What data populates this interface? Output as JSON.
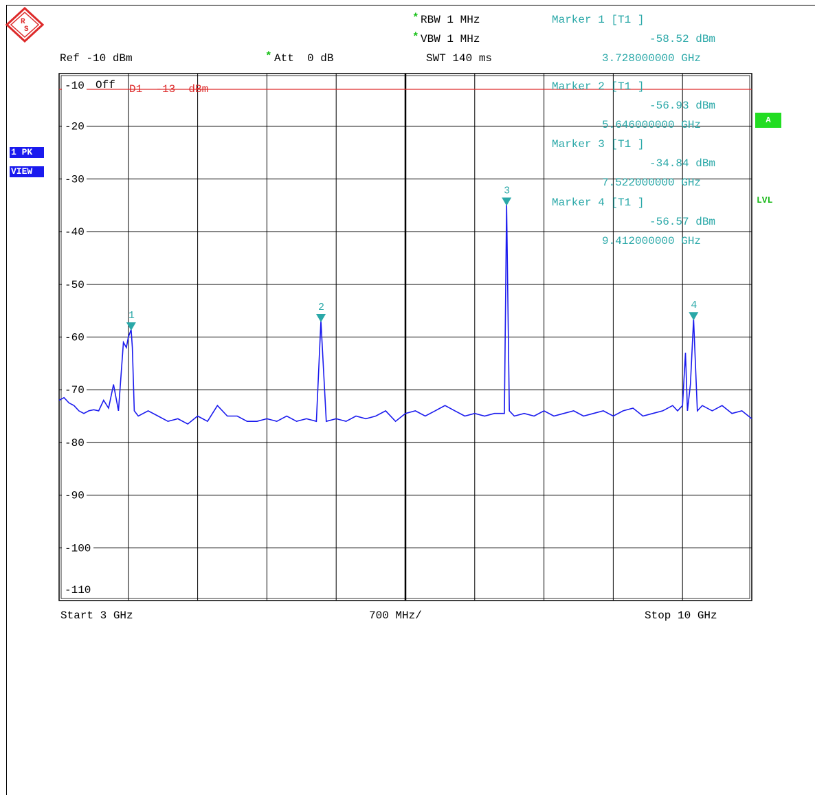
{
  "header": {
    "rbw": "RBW 1 MHz",
    "vbw": "VBW 1 MHz",
    "swt": "SWT 140 ms",
    "ref": "Ref -10 dBm",
    "att": "Att  0 dB",
    "star": "*",
    "marker1": {
      "title": "Marker 1 [T1 ]",
      "level": "-58.52 dBm",
      "freq": "3.728000000 GHz"
    }
  },
  "overlay": {
    "marker2": {
      "title": "Marker 2 [T1 ]",
      "level": "-56.93 dBm",
      "freq": "5.646000000 GHz"
    },
    "marker3": {
      "title": "Marker 3 [T1 ]",
      "level": "-34.84 dBm",
      "freq": "7.522000000 GHz"
    },
    "marker4": {
      "title": "Marker 4 [T1 ]",
      "level": "-56.57 dBm",
      "freq": "9.412000000 GHz"
    },
    "offset_label": "Off",
    "display_line": "D1  -13  dBm"
  },
  "side": {
    "trace_badge_1": "1 PK",
    "trace_badge_2": "VIEW",
    "a_badge": "A",
    "lvl": "LVL"
  },
  "footer": {
    "start": "Start 3 GHz",
    "span": "700 MHz/",
    "stop": "Stop 10 GHz"
  },
  "colors": {
    "trace": "#1a1aee",
    "marker": "#2aa8a8",
    "display_line": "#dd2a2a",
    "logo": "#dd2a2a"
  },
  "chart_data": {
    "type": "line",
    "x_unit": "GHz",
    "y_unit": "dBm",
    "xlim": [
      3,
      10
    ],
    "ylim": [
      -110,
      -10
    ],
    "ytick_labels": [
      "-10",
      "-20",
      "-30",
      "-40",
      "-50",
      "-60",
      "-70",
      "-80",
      "-90",
      "-100",
      "-110"
    ],
    "display_line_dbm": -13,
    "markers": [
      {
        "label": "1",
        "x": 3.728,
        "y": -58.52
      },
      {
        "label": "2",
        "x": 5.646,
        "y": -56.93
      },
      {
        "label": "3",
        "x": 7.522,
        "y": -34.84
      },
      {
        "label": "4",
        "x": 9.412,
        "y": -56.57
      }
    ],
    "series": [
      {
        "values_x": [
          3.0,
          3.05,
          3.1,
          3.15,
          3.2,
          3.25,
          3.3,
          3.35,
          3.4,
          3.45,
          3.5,
          3.55,
          3.6,
          3.65,
          3.68,
          3.7,
          3.72,
          3.728,
          3.74,
          3.76,
          3.8,
          3.9,
          4.0,
          4.1,
          4.2,
          4.3,
          4.4,
          4.5,
          4.6,
          4.7,
          4.8,
          4.9,
          5.0,
          5.1,
          5.2,
          5.3,
          5.4,
          5.5,
          5.6,
          5.646,
          5.7,
          5.8,
          5.9,
          6.0,
          6.1,
          6.2,
          6.3,
          6.4,
          6.5,
          6.6,
          6.7,
          6.8,
          6.9,
          7.0,
          7.1,
          7.2,
          7.3,
          7.4,
          7.5,
          7.522,
          7.55,
          7.6,
          7.7,
          7.8,
          7.9,
          8.0,
          8.1,
          8.2,
          8.3,
          8.4,
          8.5,
          8.6,
          8.7,
          8.8,
          8.9,
          9.0,
          9.1,
          9.2,
          9.25,
          9.3,
          9.33,
          9.35,
          9.38,
          9.412,
          9.45,
          9.5,
          9.6,
          9.7,
          9.8,
          9.9,
          10.0
        ],
        "values_y": [
          -72,
          -71.5,
          -72.5,
          -73,
          -74,
          -74.5,
          -74,
          -73.8,
          -74,
          -72,
          -73.5,
          -69,
          -74,
          -61,
          -62,
          -60,
          -59,
          -58.52,
          -62,
          -74,
          -75,
          -74,
          -75,
          -76,
          -75.5,
          -76.5,
          -75,
          -76,
          -73,
          -75,
          -75,
          -76,
          -76,
          -75.5,
          -76,
          -75,
          -76,
          -75.5,
          -76,
          -56.93,
          -76,
          -75.5,
          -76,
          -75,
          -75.5,
          -75,
          -74,
          -76,
          -74.5,
          -74,
          -75,
          -74,
          -73,
          -74,
          -75,
          -74.5,
          -75,
          -74.5,
          -74.5,
          -34.84,
          -74,
          -75,
          -74.5,
          -75,
          -74,
          -75,
          -74.5,
          -74,
          -75,
          -74.5,
          -74,
          -75,
          -74,
          -73.5,
          -75,
          -74.5,
          -74,
          -73,
          -74,
          -73,
          -63,
          -74,
          -69,
          -56.57,
          -74,
          -73,
          -74,
          -73,
          -74.5,
          -74,
          -75.5
        ]
      }
    ]
  }
}
